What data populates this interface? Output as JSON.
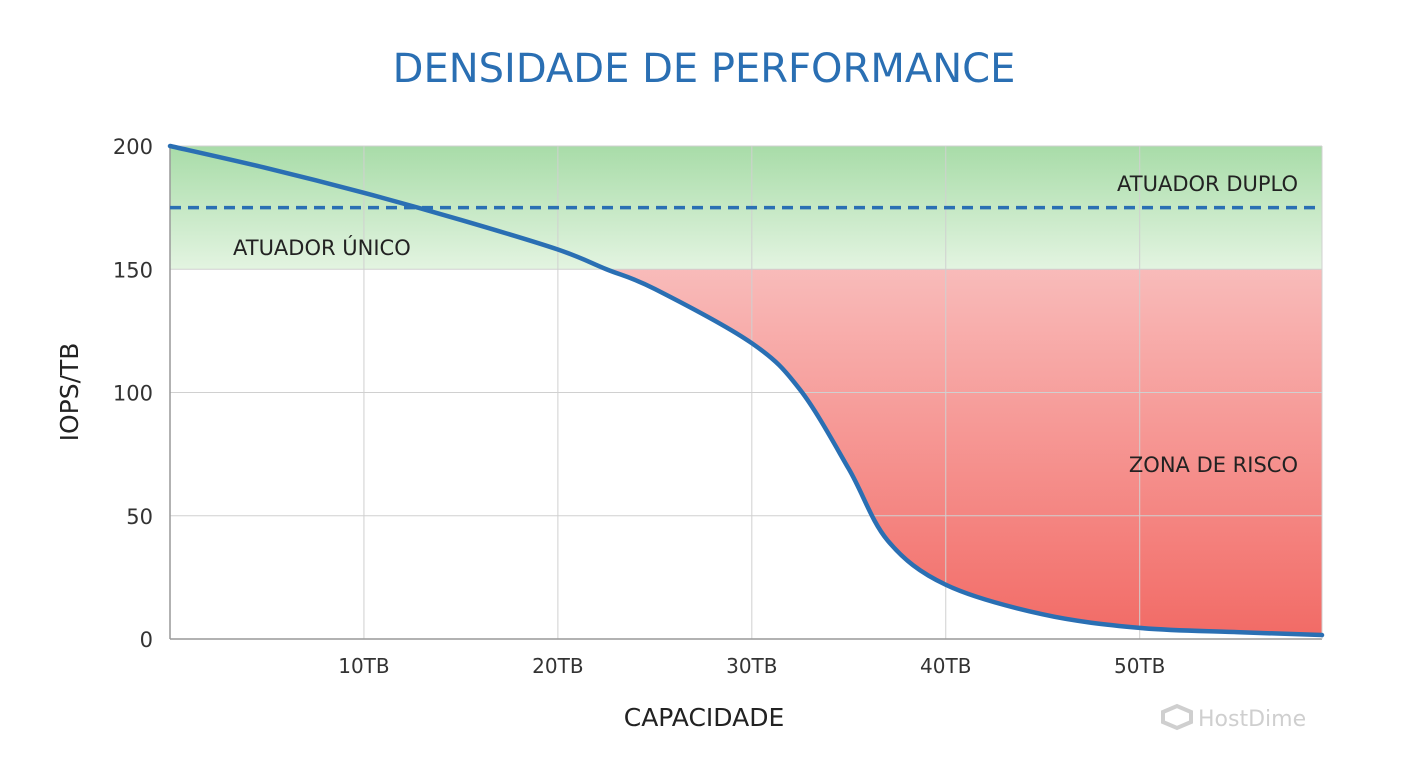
{
  "chart_data": {
    "type": "line",
    "title": "DENSIDADE DE PERFORMANCE",
    "xlabel": "CAPACIDADE",
    "ylabel": "IOPS/TB",
    "xlim": [
      0,
      59.4
    ],
    "ylim": [
      0,
      200
    ],
    "x_ticks": [
      10,
      20,
      30,
      40,
      50
    ],
    "x_tick_labels": [
      "10TB",
      "20TB",
      "30TB",
      "40TB",
      "50TB"
    ],
    "y_ticks": [
      0,
      50,
      100,
      150,
      200
    ],
    "y_tick_labels": [
      "0",
      "50",
      "100",
      "150",
      "200"
    ],
    "grid": true,
    "series": [
      {
        "color": "#2a6fb3",
        "x": [
          0,
          5,
          10,
          15,
          20,
          22.5,
          25,
          30,
          32.5,
          35,
          37,
          40,
          45,
          50,
          55,
          59.4
        ],
        "y": [
          200,
          191,
          181,
          170,
          158,
          150,
          142,
          120,
          101,
          69,
          40,
          22,
          10,
          4.5,
          2.8,
          1.6
        ]
      }
    ],
    "reference_lines": [
      {
        "label": "ATUADOR DUPLO",
        "y": 175,
        "style": "dashed",
        "color": "#2a6fb3"
      }
    ],
    "zones": [
      {
        "label": "ATUADOR ÚNICO",
        "y_range": [
          150,
          200
        ],
        "color": "#a8dca8"
      },
      {
        "label": "ZONA DE RISCO",
        "y_range": [
          0,
          150
        ],
        "bounded_by": "curve",
        "color": "#f26b66"
      }
    ],
    "watermark": "HostDime",
    "colors": {
      "title": "#2a6fb3",
      "line": "#2a6fb3",
      "grid": "#d0d0d0"
    }
  }
}
